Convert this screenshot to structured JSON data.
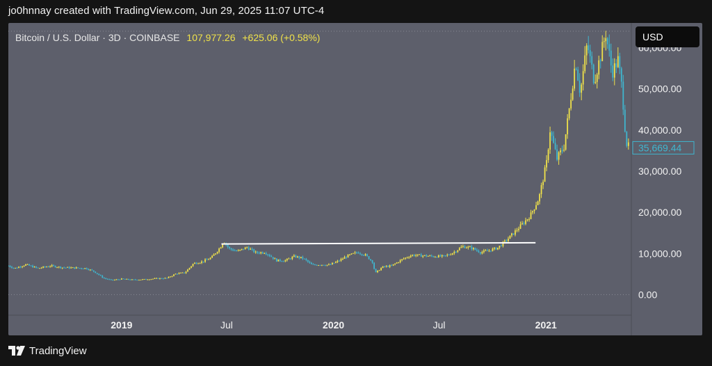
{
  "header": {
    "caption": "jo0hnnay created with TradingView.com, Jun 29, 2025 11:07 UTC-4"
  },
  "symbol": {
    "name": "Bitcoin / U.S. Dollar · 3D · COINBASE",
    "last_price": "107,977.26",
    "change": "+625.06 (+0.58%)"
  },
  "currency_button": {
    "label": "USD"
  },
  "footer": {
    "brand": "TradingView",
    "logo_icon": "tradingview-logo-icon"
  },
  "colors": {
    "background": "#141414",
    "plot": "#5d5f6b",
    "bull": "#f0e24a",
    "bear": "#3fb6cf",
    "trendline": "#ffffff",
    "price_label": "#3fb6cf"
  },
  "chart_data": {
    "type": "line",
    "title": "",
    "xlabel": "",
    "ylabel": "",
    "ylim": [
      -5000,
      66000
    ],
    "y_ticks": [
      {
        "value": 0,
        "label": "0.00"
      },
      {
        "value": 10000,
        "label": "10,000.00"
      },
      {
        "value": 20000,
        "label": "20,000.00"
      },
      {
        "value": 30000,
        "label": "30,000.00"
      },
      {
        "value": 40000,
        "label": "40,000.00"
      },
      {
        "value": 50000,
        "label": "50,000.00"
      },
      {
        "value": 60000,
        "label": "60,000.00"
      }
    ],
    "x_ticks": [
      {
        "date": "2019-01-01",
        "label": "2019",
        "bold": true
      },
      {
        "date": "2019-07-01",
        "label": "Jul",
        "bold": false
      },
      {
        "date": "2020-01-01",
        "label": "2020",
        "bold": true
      },
      {
        "date": "2020-07-01",
        "label": "Jul",
        "bold": false
      },
      {
        "date": "2021-01-01",
        "label": "2021",
        "bold": true
      }
    ],
    "xlim": [
      "2018-06-20",
      "2021-05-28"
    ],
    "current_price_label": {
      "value": 35669.44,
      "label": "35,669.44"
    },
    "dotted_levels": [
      0,
      64000
    ],
    "trendline": {
      "x": [
        "2019-06-22",
        "2020-12-14"
      ],
      "y": [
        12300,
        12600
      ]
    },
    "series": [
      {
        "x": [
          "2018-06-20",
          "2018-07-01",
          "2018-07-20",
          "2018-08-10",
          "2018-09-01",
          "2018-09-20",
          "2018-10-10",
          "2018-11-01",
          "2018-11-15",
          "2018-12-01",
          "2018-12-15",
          "2019-01-01",
          "2019-01-20",
          "2019-02-10",
          "2019-03-01",
          "2019-03-20",
          "2019-04-05",
          "2019-04-20",
          "2019-05-05",
          "2019-05-20",
          "2019-06-05",
          "2019-06-20",
          "2019-06-26",
          "2019-07-05",
          "2019-07-20",
          "2019-08-05",
          "2019-08-20",
          "2019-09-05",
          "2019-09-25",
          "2019-10-10",
          "2019-10-26",
          "2019-11-10",
          "2019-11-25",
          "2019-12-10",
          "2019-12-25",
          "2020-01-10",
          "2020-01-25",
          "2020-02-12",
          "2020-02-25",
          "2020-03-08",
          "2020-03-13",
          "2020-03-25",
          "2020-04-10",
          "2020-04-30",
          "2020-05-15",
          "2020-06-01",
          "2020-06-20",
          "2020-07-10",
          "2020-07-25",
          "2020-08-10",
          "2020-08-25",
          "2020-09-10",
          "2020-09-25",
          "2020-10-10",
          "2020-10-25",
          "2020-11-10",
          "2020-11-25",
          "2020-12-05",
          "2020-12-20",
          "2021-01-02",
          "2021-01-08",
          "2021-01-20",
          "2021-02-01",
          "2021-02-10",
          "2021-02-21",
          "2021-03-01",
          "2021-03-13",
          "2021-03-25",
          "2021-04-05",
          "2021-04-14",
          "2021-04-25",
          "2021-05-05",
          "2021-05-12",
          "2021-05-19",
          "2021-05-24"
        ],
        "values": [
          7000,
          6400,
          7300,
          6400,
          7000,
          6600,
          6500,
          6400,
          5600,
          4000,
          3500,
          3800,
          3600,
          3700,
          3900,
          4000,
          5100,
          5300,
          7600,
          8000,
          9000,
          11500,
          13000,
          11200,
          10500,
          11500,
          10200,
          10300,
          8300,
          8300,
          9300,
          8800,
          7200,
          7300,
          7200,
          8200,
          9400,
          10300,
          9600,
          8000,
          5200,
          6700,
          7000,
          8700,
          9600,
          9500,
          9300,
          9300,
          10200,
          11700,
          11400,
          10300,
          10700,
          11400,
          13200,
          15500,
          17700,
          19200,
          23500,
          32000,
          40000,
          33000,
          36000,
          45000,
          57000,
          49000,
          61000,
          52000,
          58000,
          63500,
          54000,
          57000,
          50000,
          37000,
          35669
        ]
      }
    ]
  }
}
